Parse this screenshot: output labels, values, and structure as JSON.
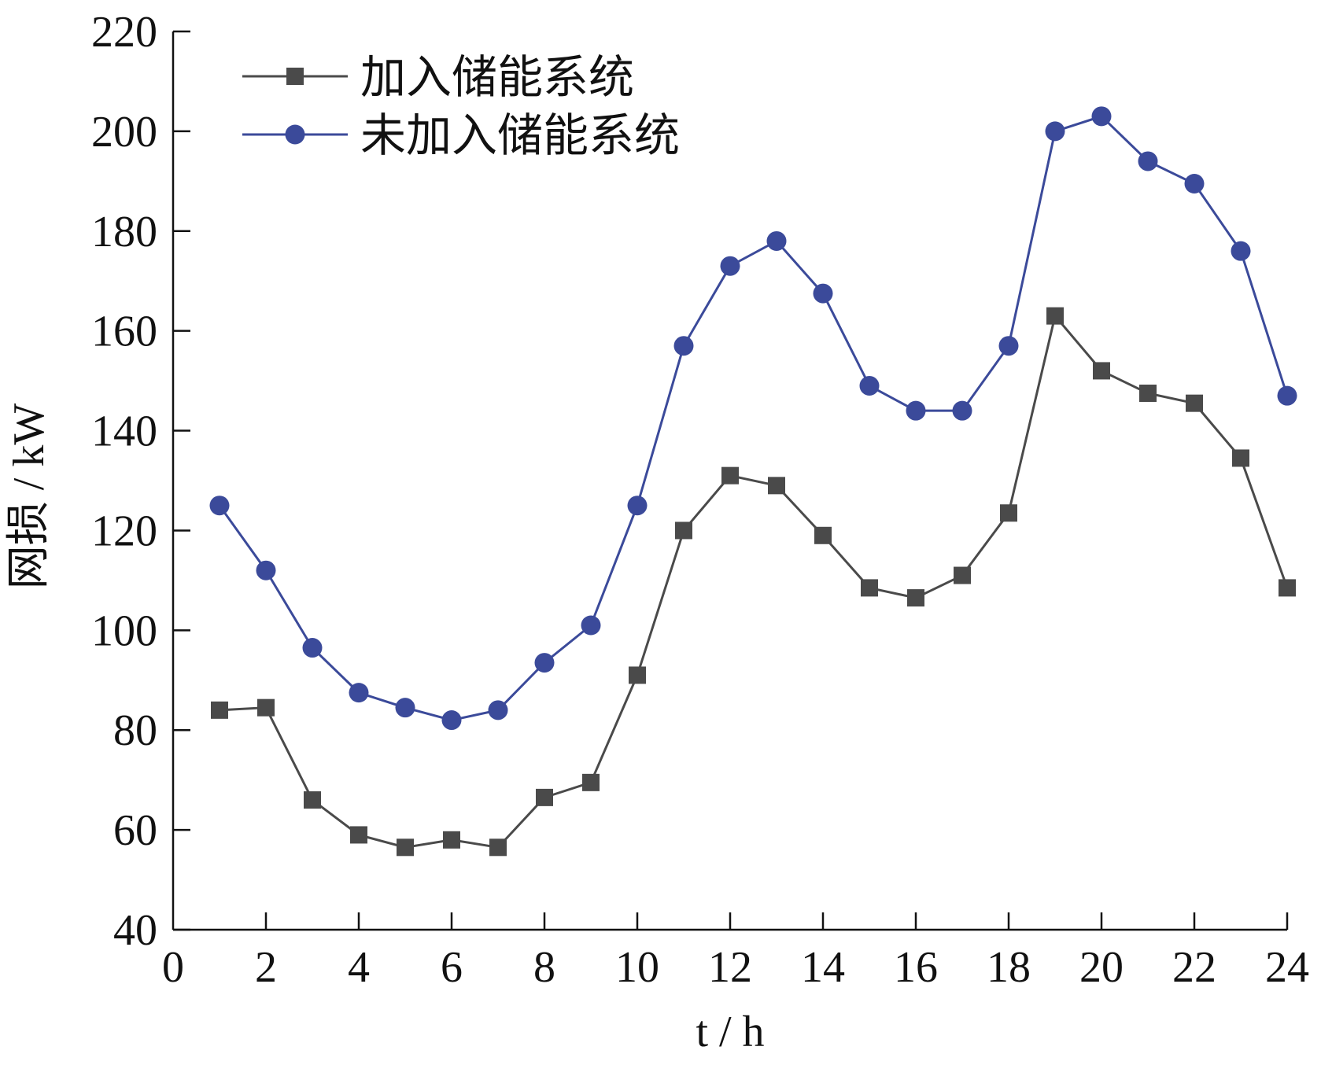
{
  "chart_data": {
    "type": "line",
    "xlabel": "t / h",
    "ylabel": "网损 / kW",
    "xlim": [
      0,
      24
    ],
    "ylim": [
      40,
      220
    ],
    "xticks": [
      0,
      2,
      4,
      6,
      8,
      10,
      12,
      14,
      16,
      18,
      20,
      22,
      24
    ],
    "yticks": [
      40,
      60,
      80,
      100,
      120,
      140,
      160,
      180,
      200,
      220
    ],
    "x": [
      1,
      2,
      3,
      4,
      5,
      6,
      7,
      8,
      9,
      10,
      11,
      12,
      13,
      14,
      15,
      16,
      17,
      18,
      19,
      20,
      21,
      22,
      23,
      24
    ],
    "series": [
      {
        "name": "加入储能系统",
        "marker": "square",
        "color": "#4a4a4a",
        "values": [
          84,
          84.5,
          66,
          59,
          56.5,
          58,
          56.5,
          66.5,
          69.5,
          91,
          120,
          131,
          129,
          119,
          108.5,
          106.5,
          111,
          123.5,
          163,
          152,
          147.5,
          145.5,
          134.5,
          108.5
        ]
      },
      {
        "name": "未加入储能系统",
        "marker": "circle",
        "color": "#3b4a9a",
        "values": [
          125,
          112,
          96.5,
          87.5,
          84.5,
          82,
          84,
          93.5,
          101,
          125,
          157,
          173,
          178,
          167.5,
          149,
          144,
          144,
          157,
          200,
          203,
          194,
          189.5,
          176,
          147
        ]
      }
    ],
    "legend": "top-left",
    "grid": false
  }
}
